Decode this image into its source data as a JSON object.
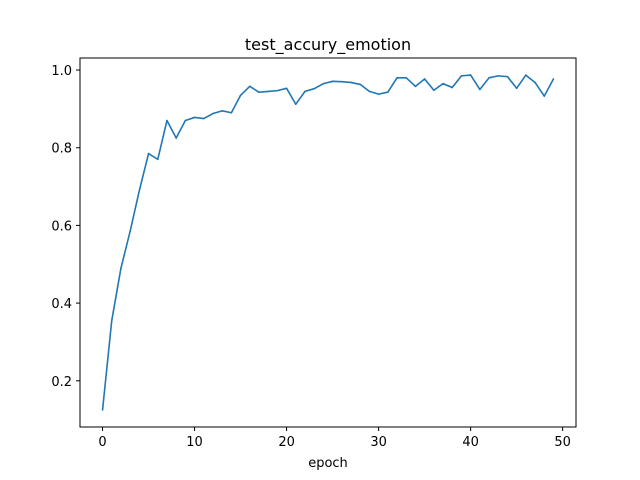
{
  "chart_data": {
    "type": "line",
    "title": "test_accury_emotion",
    "xlabel": "epoch",
    "ylabel": "",
    "xlim": [
      -2.45,
      51.45
    ],
    "ylim": [
      0.081,
      1.031
    ],
    "xticks": [
      0,
      10,
      20,
      30,
      40,
      50
    ],
    "yticks": [
      0.2,
      0.4,
      0.6,
      0.8,
      1.0
    ],
    "xtick_labels": [
      "0",
      "10",
      "20",
      "30",
      "40",
      "50"
    ],
    "ytick_labels": [
      "0.2",
      "0.4",
      "0.6",
      "0.8",
      "1.0"
    ],
    "grid": false,
    "line_color": "#1f77b4",
    "x": [
      0,
      1,
      2,
      3,
      4,
      5,
      6,
      7,
      8,
      9,
      10,
      11,
      12,
      13,
      14,
      15,
      16,
      17,
      18,
      19,
      20,
      21,
      22,
      23,
      24,
      25,
      26,
      27,
      28,
      29,
      30,
      31,
      32,
      33,
      34,
      35,
      36,
      37,
      38,
      39,
      40,
      41,
      42,
      43,
      44,
      45,
      46,
      47,
      48,
      49
    ],
    "values": [
      0.125,
      0.355,
      0.49,
      0.585,
      0.69,
      0.785,
      0.77,
      0.87,
      0.825,
      0.87,
      0.878,
      0.875,
      0.888,
      0.895,
      0.89,
      0.935,
      0.958,
      0.943,
      0.945,
      0.947,
      0.953,
      0.912,
      0.945,
      0.952,
      0.965,
      0.971,
      0.97,
      0.968,
      0.963,
      0.945,
      0.938,
      0.943,
      0.98,
      0.98,
      0.958,
      0.977,
      0.948,
      0.965,
      0.955,
      0.985,
      0.987,
      0.95,
      0.98,
      0.985,
      0.983,
      0.953,
      0.987,
      0.968,
      0.933,
      0.977
    ]
  }
}
